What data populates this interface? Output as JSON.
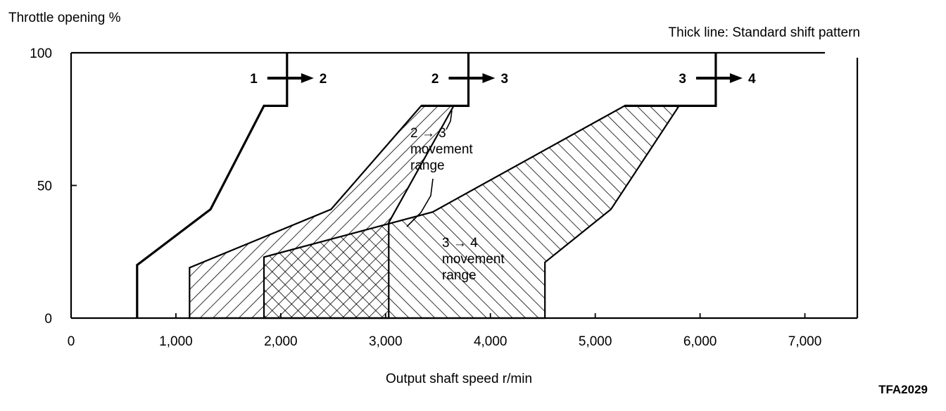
{
  "chart_data": {
    "type": "line",
    "title": "",
    "ylabel": "Throttle opening %",
    "xlabel": "Output shaft speed r/min",
    "note": "Thick line: Standard shift pattern",
    "figure_code": "TFA2029",
    "xlim": [
      0,
      7500
    ],
    "ylim": [
      0,
      100
    ],
    "x_ticks": [
      0,
      1000,
      2000,
      3000,
      4000,
      5000,
      6000,
      7000
    ],
    "x_tick_labels": [
      "0",
      "1,000",
      "2,000",
      "3,000",
      "4,000",
      "5,000",
      "6,000",
      "7,000"
    ],
    "y_ticks": [
      0,
      50,
      100
    ],
    "y_tick_labels": [
      "0",
      "50",
      "100"
    ],
    "series": [
      {
        "name": "1 → 2",
        "from": "1",
        "to": "2",
        "points": [
          [
            630,
            0
          ],
          [
            630,
            20
          ],
          [
            1330,
            41
          ],
          [
            1840,
            80
          ],
          [
            2060,
            80
          ],
          [
            2060,
            100
          ]
        ]
      },
      {
        "name": "2 → 3",
        "from": "2",
        "to": "3",
        "points": [
          [
            3340,
            80
          ],
          [
            3790,
            80
          ],
          [
            3790,
            100
          ]
        ]
      },
      {
        "name": "3 → 4",
        "from": "3",
        "to": "4",
        "points": [
          [
            5280,
            80
          ],
          [
            6150,
            80
          ],
          [
            6150,
            100
          ]
        ]
      }
    ],
    "regions": [
      {
        "name": "2 → 3 movement range",
        "label_lines": [
          "2 → 3",
          "movement",
          "range"
        ],
        "points": [
          [
            1130,
            0
          ],
          [
            1130,
            19
          ],
          [
            2480,
            41
          ],
          [
            3340,
            80
          ],
          [
            3650,
            80
          ],
          [
            3030,
            36
          ],
          [
            3030,
            0
          ]
        ]
      },
      {
        "name": "3 → 4 movement range",
        "label_lines": [
          "3 → 4",
          "movement",
          "range"
        ],
        "points": [
          [
            1840,
            0
          ],
          [
            1840,
            23
          ],
          [
            3450,
            40
          ],
          [
            5280,
            80
          ],
          [
            5800,
            80
          ],
          [
            5150,
            41
          ],
          [
            4520,
            21
          ],
          [
            4520,
            0
          ]
        ]
      }
    ]
  }
}
